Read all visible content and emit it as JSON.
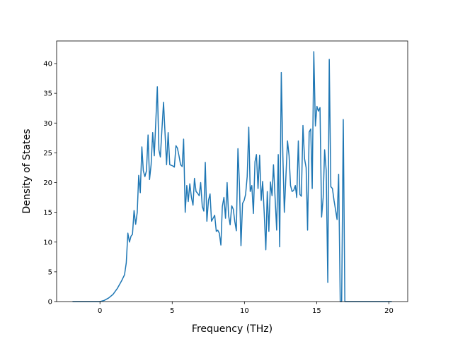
{
  "chart_data": {
    "type": "line",
    "x_label": "Frequency (THz)",
    "y_label": "Density of States",
    "color": "#1f77b4",
    "x": [
      -1.9,
      0,
      0.3,
      0.6,
      0.9,
      1.2,
      1.5,
      1.7,
      1.82,
      1.93,
      2.04,
      2.15,
      2.25,
      2.36,
      2.47,
      2.58,
      2.68,
      2.79,
      2.9,
      3.0,
      3.11,
      3.22,
      3.33,
      3.43,
      3.54,
      3.65,
      3.76,
      3.86,
      3.97,
      4.08,
      4.18,
      4.29,
      4.4,
      4.51,
      4.61,
      4.72,
      4.83,
      5.04,
      5.15,
      5.26,
      5.36,
      5.47,
      5.58,
      5.69,
      5.79,
      5.9,
      6.01,
      6.11,
      6.22,
      6.33,
      6.44,
      6.54,
      6.65,
      6.76,
      6.87,
      6.97,
      7.08,
      7.19,
      7.29,
      7.4,
      7.51,
      7.62,
      7.72,
      7.83,
      7.94,
      8.05,
      8.15,
      8.26,
      8.37,
      8.47,
      8.58,
      8.69,
      8.8,
      8.9,
      9.01,
      9.12,
      9.23,
      9.33,
      9.44,
      9.55,
      9.65,
      9.76,
      9.87,
      9.98,
      10.08,
      10.19,
      10.3,
      10.4,
      10.51,
      10.62,
      10.73,
      10.83,
      10.94,
      11.05,
      11.16,
      11.26,
      11.37,
      11.48,
      11.58,
      11.69,
      11.8,
      11.91,
      12.01,
      12.12,
      12.23,
      12.34,
      12.44,
      12.55,
      12.66,
      12.76,
      12.87,
      12.98,
      13.09,
      13.19,
      13.3,
      13.41,
      13.52,
      13.62,
      13.73,
      13.84,
      13.94,
      14.05,
      14.16,
      14.27,
      14.37,
      14.48,
      14.59,
      14.69,
      14.8,
      14.91,
      15.02,
      15.12,
      15.23,
      15.34,
      15.45,
      15.55,
      15.66,
      15.77,
      15.87,
      15.98,
      16.09,
      16.2,
      16.3,
      16.41,
      16.52,
      16.63,
      16.73,
      16.84,
      16.95,
      20.2
    ],
    "values": [
      0,
      0,
      0.2,
      0.6,
      1.2,
      2.2,
      3.5,
      4.5,
      6.5,
      11.5,
      10,
      11,
      11.3,
      15.3,
      13,
      15,
      21.2,
      18.3,
      26,
      22,
      21,
      22,
      28,
      20.5,
      23,
      28.4,
      24.5,
      30,
      36.1,
      25.5,
      24.3,
      29,
      33.5,
      28,
      23,
      28.4,
      23,
      22.8,
      22.6,
      26.2,
      25.8,
      24.5,
      23,
      22.7,
      27.3,
      15,
      19.5,
      16.8,
      19.8,
      17.5,
      16.2,
      20.7,
      18.5,
      18.2,
      17.8,
      20,
      16,
      15.2,
      23.4,
      13.5,
      17,
      18.1,
      13.5,
      14,
      14.5,
      11.8,
      12,
      11.5,
      9.5,
      16,
      17.5,
      14,
      20,
      14.5,
      12.9,
      16.1,
      15.5,
      13.5,
      11.9,
      25.7,
      20,
      9.4,
      16.5,
      17,
      18,
      21,
      29.3,
      18.5,
      19.5,
      14.8,
      23.5,
      24.7,
      19,
      24.6,
      17,
      20.2,
      14.8,
      8.7,
      18.5,
      11.8,
      20.1,
      17.8,
      23,
      17.5,
      12,
      24.7,
      9.2,
      38.5,
      24.5,
      15,
      21,
      27,
      24.5,
      19.5,
      18.5,
      18.7,
      19.5,
      17.5,
      27,
      18,
      17.7,
      29.6,
      24,
      22.5,
      12,
      28.5,
      29,
      19,
      42,
      29.5,
      32.8,
      32,
      32.6,
      14.2,
      17.5,
      25.5,
      22,
      3.2,
      40.7,
      19.3,
      19,
      17,
      15.5,
      13.8,
      21.4,
      0,
      0,
      30.6,
      0,
      0
    ],
    "xlim": [
      -3.0,
      21.3
    ],
    "ylim": [
      0,
      43.8
    ],
    "xticks": [
      0,
      5,
      10,
      15,
      20
    ],
    "yticks": [
      0,
      5,
      10,
      15,
      20,
      25,
      30,
      35,
      40
    ]
  }
}
